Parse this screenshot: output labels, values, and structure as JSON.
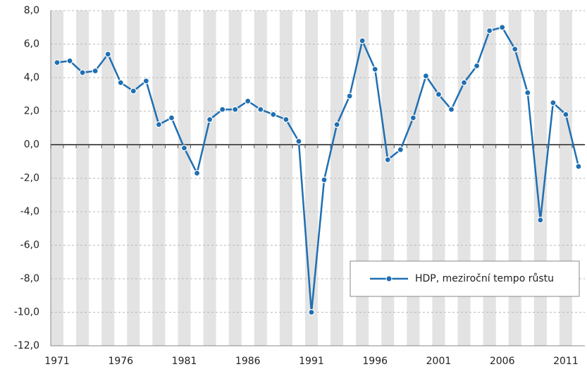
{
  "chart_data": {
    "type": "line",
    "x": [
      1971,
      1972,
      1973,
      1974,
      1975,
      1976,
      1977,
      1978,
      1979,
      1980,
      1981,
      1982,
      1983,
      1984,
      1985,
      1986,
      1987,
      1988,
      1989,
      1990,
      1991,
      1992,
      1993,
      1994,
      1995,
      1996,
      1997,
      1998,
      1999,
      2000,
      2001,
      2002,
      2003,
      2004,
      2005,
      2006,
      2007,
      2008,
      2009,
      2010,
      2011,
      2012
    ],
    "series": [
      {
        "name": "HDP, meziroční tempo růstu",
        "color": "#1f6fb2",
        "values": [
          4.9,
          5.0,
          4.3,
          4.4,
          5.4,
          3.7,
          3.2,
          3.8,
          1.2,
          1.6,
          -0.2,
          -1.7,
          1.5,
          2.1,
          2.1,
          2.6,
          2.1,
          1.8,
          1.5,
          0.2,
          -10.0,
          -2.1,
          1.2,
          2.9,
          6.2,
          4.5,
          -0.9,
          -0.3,
          1.6,
          4.1,
          3.0,
          2.1,
          3.7,
          4.7,
          6.8,
          7.0,
          5.7,
          3.1,
          -4.5,
          2.5,
          1.8,
          -1.3
        ]
      }
    ],
    "xlim": [
      1970.5,
      2012.5
    ],
    "xticks": [
      1971,
      1976,
      1981,
      1986,
      1991,
      1996,
      2001,
      2006,
      2011
    ],
    "ylim": [
      -12,
      8
    ],
    "yticks": [
      {
        "value": -12,
        "label": "-12,0"
      },
      {
        "value": -10,
        "label": "-10,0"
      },
      {
        "value": -8,
        "label": "-8,0"
      },
      {
        "value": -6,
        "label": "-6,0"
      },
      {
        "value": -4,
        "label": "-4,0"
      },
      {
        "value": -2,
        "label": "-2,0"
      },
      {
        "value": 0,
        "label": "0,0"
      },
      {
        "value": 2,
        "label": "2,0"
      },
      {
        "value": 4,
        "label": "4,0"
      },
      {
        "value": 6,
        "label": "6,0"
      },
      {
        "value": 8,
        "label": "8,0"
      }
    ],
    "grid": true,
    "legend": "lower right"
  }
}
